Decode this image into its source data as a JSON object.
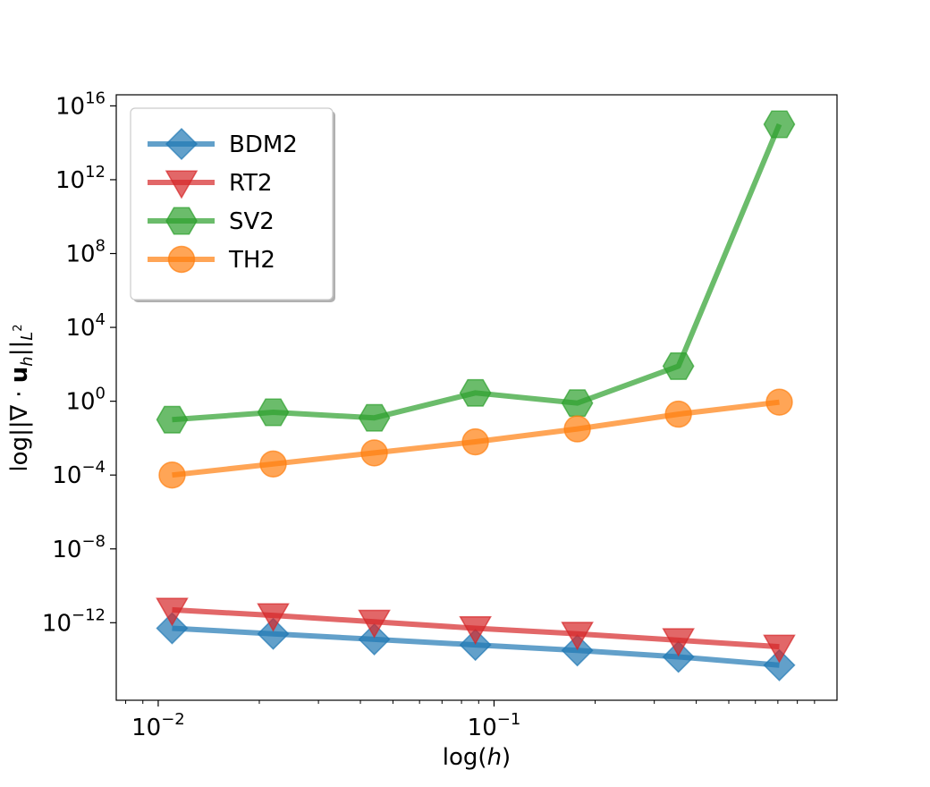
{
  "chart_data": {
    "type": "line",
    "xlabel": {
      "prefix": "log(",
      "var": "h",
      "suffix": ")"
    },
    "ylabel": {
      "prefix": "log||∇ · ",
      "bold": "u",
      "sub1": "h",
      "mid": "||",
      "sub2": "L",
      "sup2": "2"
    },
    "x_scale": "log",
    "y_scale": "log",
    "xlim": [
      0.0075,
      1.05
    ],
    "ylim_exp": [
      -16.2,
      16.6
    ],
    "x_ticks": [
      {
        "base": "10",
        "exp": "−2",
        "value": 0.01
      },
      {
        "base": "10",
        "exp": "−1",
        "value": 0.1
      }
    ],
    "y_ticks": [
      {
        "base": "10",
        "exp": "−12",
        "exp_value": -12
      },
      {
        "base": "10",
        "exp": "−8",
        "exp_value": -8
      },
      {
        "base": "10",
        "exp": "−4",
        "exp_value": -4
      },
      {
        "base": "10",
        "exp": "0",
        "exp_value": 0
      },
      {
        "base": "10",
        "exp": "4",
        "exp_value": 4
      },
      {
        "base": "10",
        "exp": "8",
        "exp_value": 8
      },
      {
        "base": "10",
        "exp": "12",
        "exp_value": 12
      },
      {
        "base": "10",
        "exp": "16",
        "exp_value": 16
      }
    ],
    "grid": false,
    "legend_position": "top-left",
    "x": [
      0.011,
      0.022,
      0.044,
      0.088,
      0.177,
      0.354,
      0.707
    ],
    "series": [
      {
        "name": "BDM2",
        "color": "#1f77b4",
        "marker": "diamond",
        "y_exp": [
          -12.3,
          -12.6,
          -12.9,
          -13.2,
          -13.5,
          -13.85,
          -14.3
        ]
      },
      {
        "name": "RT2",
        "color": "#d62728",
        "marker": "triangle-down",
        "y_exp": [
          -11.3,
          -11.6,
          -11.95,
          -12.3,
          -12.6,
          -12.95,
          -13.3
        ]
      },
      {
        "name": "SV2",
        "color": "#2ca02c",
        "marker": "hexagon",
        "y_exp": [
          -1.0,
          -0.6,
          -0.9,
          0.45,
          -0.1,
          1.9,
          15.0
        ]
      },
      {
        "name": "TH2",
        "color": "#ff7f0e",
        "marker": "circle",
        "y_exp": [
          -4.0,
          -3.4,
          -2.8,
          -2.2,
          -1.5,
          -0.7,
          -0.05
        ]
      }
    ]
  }
}
